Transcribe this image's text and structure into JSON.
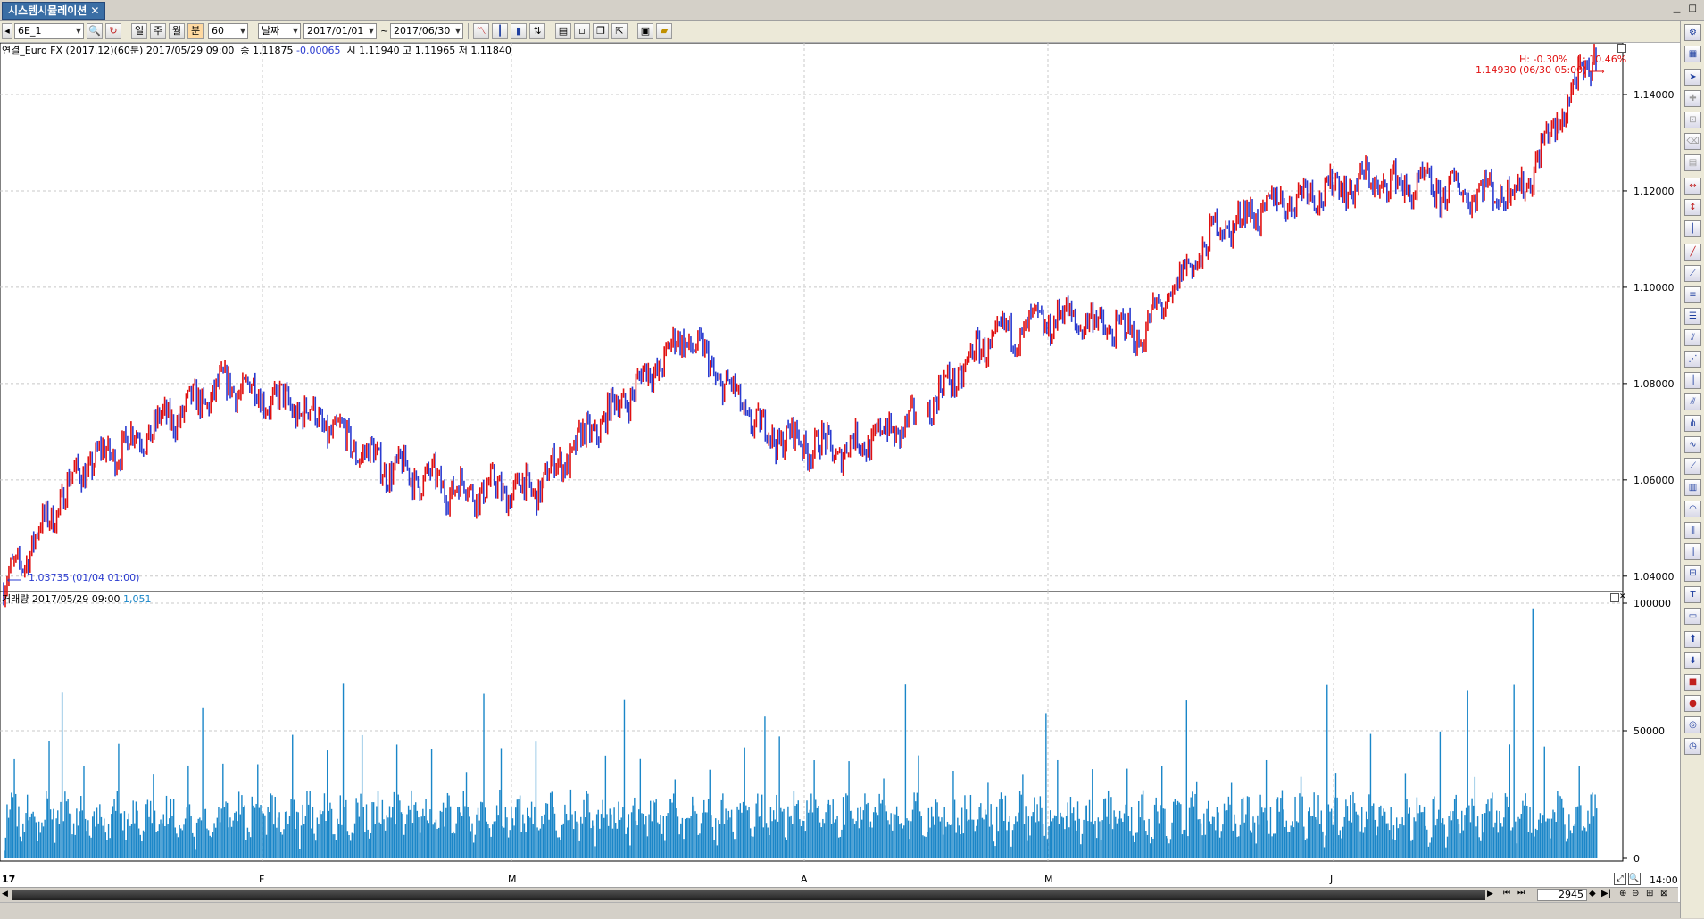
{
  "window": {
    "tab_title": "시스템시뮬레이션",
    "tab_close": "✕"
  },
  "toolbar": {
    "symbol": "6E_1",
    "period_buttons": [
      "일",
      "주",
      "월",
      "분"
    ],
    "interval": "60",
    "date_mode": "날짜",
    "start_date": "2017/01/01",
    "range_sep": "~",
    "end_date": "2017/06/30"
  },
  "price_panel": {
    "name": "연결_Euro FX (2017.12)(60분)",
    "datetime": "2017/05/29 09:00",
    "close_label": "종",
    "close": "1.11875",
    "change": "-0.00065",
    "open_label": "시",
    "open": "1.11940",
    "high_label": "고",
    "high": "1.11965",
    "low_label": "저",
    "low": "1.11840",
    "hl_label": "H: -0.30%   L: 10.46%",
    "max_label": "1.14930 (06/30 05:00)",
    "min_label": "1.03735 (01/04 01:00)"
  },
  "volume_panel": {
    "name": "거래량",
    "datetime": "2017/05/29 09:00",
    "value": "1,051"
  },
  "x_axis": {
    "labels": [
      "17",
      "F",
      "M",
      "A",
      "M",
      "J"
    ],
    "last_time": "14:00"
  },
  "scroll": {
    "bar_count": "2945"
  },
  "colors": {
    "up": "#e01010",
    "down": "#2a3bd0",
    "volume": "#1a86c8",
    "grid": "#c8c8c8"
  },
  "chart_data": {
    "type": "line",
    "series": [
      {
        "type": "candlestick",
        "x": [
          "2017-01-04",
          "2017-01-10",
          "2017-01-20",
          "2017-02-01",
          "2017-02-10",
          "2017-02-20",
          "2017-03-01",
          "2017-03-10",
          "2017-03-20",
          "2017-03-28",
          "2017-04-03",
          "2017-04-12",
          "2017-04-20",
          "2017-04-25",
          "2017-05-02",
          "2017-05-10",
          "2017-05-17",
          "2017-05-29",
          "2017-06-05",
          "2017-06-14",
          "2017-06-22",
          "2017-06-30"
        ],
        "values": [
          1.0374,
          1.062,
          1.071,
          1.08,
          1.074,
          1.063,
          1.058,
          1.058,
          1.074,
          1.09,
          1.07,
          1.066,
          1.072,
          1.089,
          1.094,
          1.09,
          1.112,
          1.1188,
          1.122,
          1.12,
          1.12,
          1.1493
        ]
      },
      {
        "name": "거래량",
        "type": "bar",
        "values_note": "hourly volume, typical 5000-30000, peaks up to ~98000"
      }
    ],
    "price_ylim": [
      1.037,
      1.15
    ],
    "price_ticks": [
      "1.04000",
      "1.06000",
      "1.08000",
      "1.10000",
      "1.12000",
      "1.14000"
    ],
    "volume_ylim": [
      0,
      100000
    ],
    "volume_ticks": [
      "0",
      "50000",
      "100000"
    ],
    "grid": true
  }
}
